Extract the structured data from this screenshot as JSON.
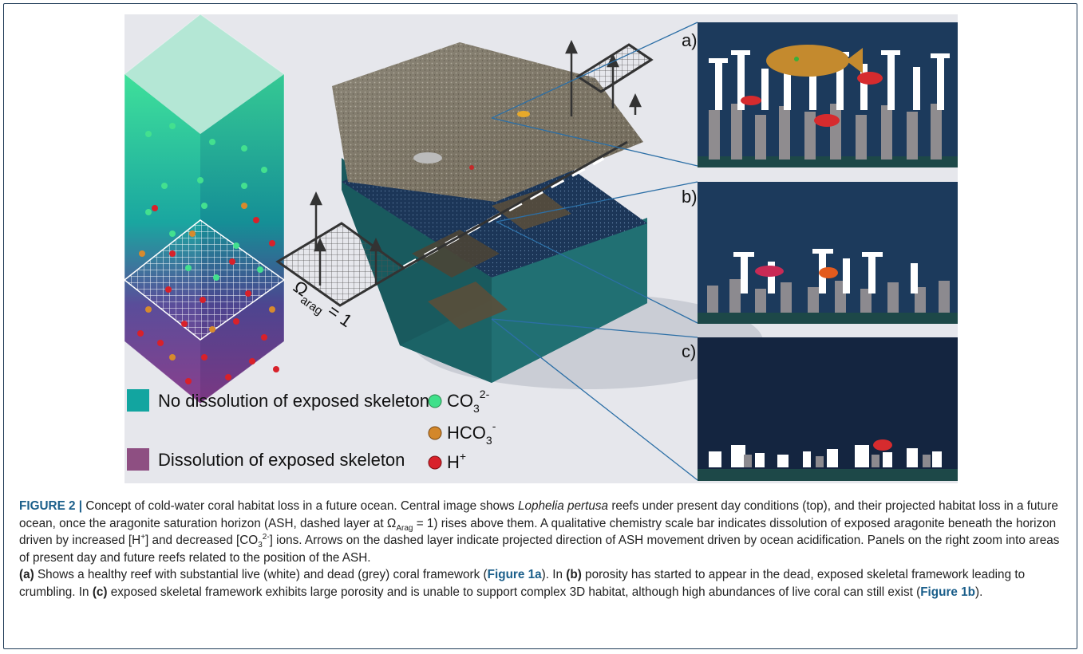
{
  "figure": {
    "legend": {
      "item1": "No dissolution of exposed skeleton",
      "item2": "Dissolution of exposed skeleton",
      "co3_base": "CO",
      "co3_sub": "3",
      "co3_sup": "2-",
      "hco3_base": "HCO",
      "hco3_sub": "3",
      "hco3_sup": "-",
      "h_base": "H",
      "h_sup": "+"
    },
    "omega_symbol": "Ω",
    "omega_sub": "arag",
    "omega_eq": "= 1",
    "panels": [
      "a)",
      "b)",
      "c)"
    ],
    "colors": {
      "no_dissolution": "#12a5a0",
      "dissolution": "#8e4f82",
      "co3": "#3fe08a",
      "hco3": "#d3872a",
      "h": "#d8212a"
    }
  },
  "caption": {
    "label": "FIGURE 2 |",
    "t1": " Concept of cold-water coral habitat loss in a future ocean. Central image shows ",
    "species": "Lophelia pertusa",
    "t2": " reefs under present day conditions (top), and their projected habitat loss in a future ocean, once the aragonite saturation horizon (ASH, dashed layer at Ω",
    "t2_sub": "Arag",
    "t3": " = 1) rises above them. A qualitative chemistry scale bar indicates dissolution of exposed aragonite beneath the horizon driven by increased [H",
    "t3_sup": "+",
    "t4": "] and decreased [CO",
    "t4_sub": "3",
    "t4_sup": "2-",
    "t5": "] ions. Arrows on the dashed layer indicate projected direction of ASH movement driven by ocean acidification. Panels on the right zoom into areas of present day and future reefs related to the position of the ASH.",
    "a_label": "(a)",
    "a_text1": " Shows a healthy reef with substantial live (white) and dead (grey) coral framework (",
    "fig1a": "Figure 1a",
    "a_text2": "). In ",
    "b_label": "(b)",
    "b_text": " porosity has started to appear in the dead, exposed skeletal framework leading to crumbling. In ",
    "c_label": "(c)",
    "c_text": " exposed skeletal framework exhibits large porosity and is unable to support complex 3D habitat, although high abundances of live coral can still exist (",
    "fig1b": "Figure 1b",
    "end": ")."
  }
}
